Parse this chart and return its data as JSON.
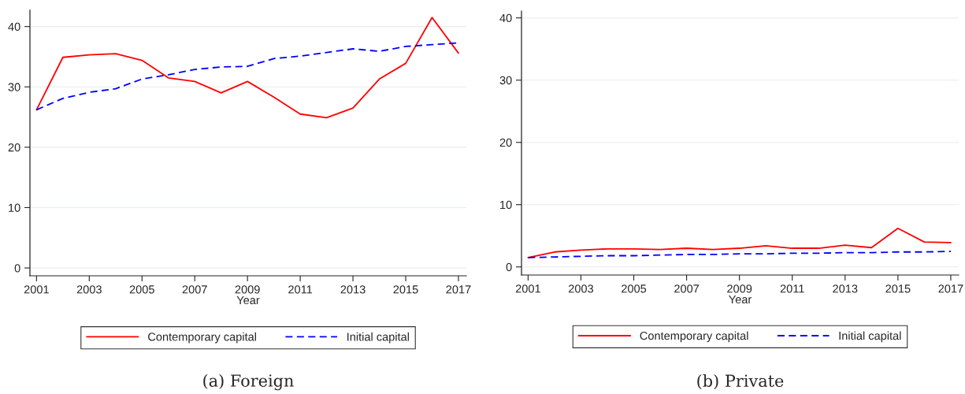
{
  "chart_data": [
    {
      "type": "line",
      "title": "(a) Foreign",
      "xlabel": "Year",
      "x": [
        2001,
        2002,
        2003,
        2004,
        2005,
        2006,
        2007,
        2008,
        2009,
        2010,
        2011,
        2012,
        2013,
        2014,
        2015,
        2016,
        2017
      ],
      "series": [
        {
          "name": "Contemporary capital",
          "color": "#ff0000",
          "line_style": "solid",
          "values": [
            26.2,
            34.9,
            35.3,
            35.5,
            34.4,
            31.5,
            30.9,
            29.0,
            30.9,
            28.3,
            25.5,
            24.9,
            26.5,
            31.3,
            33.9,
            41.5,
            35.6
          ]
        },
        {
          "name": "Initial capital",
          "color": "#0000ff",
          "line_style": "dashed",
          "values": [
            26.2,
            28.1,
            29.1,
            29.7,
            31.3,
            32.0,
            32.9,
            33.3,
            33.4,
            34.7,
            35.1,
            35.7,
            36.3,
            35.9,
            36.7,
            37.0,
            37.3
          ]
        }
      ],
      "xlim": [
        2000.75,
        2017.3
      ],
      "xticks": [
        2001,
        2003,
        2005,
        2007,
        2009,
        2011,
        2013,
        2015,
        2017
      ],
      "ylim": [
        -1.3,
        42.7
      ],
      "yticks": [
        0,
        10,
        20,
        30,
        40
      ],
      "grid": "y",
      "legend": "bottom",
      "marker": "none"
    },
    {
      "type": "line",
      "title": "(b) Private",
      "xlabel": "Year",
      "x": [
        2001,
        2002,
        2003,
        2004,
        2005,
        2006,
        2007,
        2008,
        2009,
        2010,
        2011,
        2012,
        2013,
        2014,
        2015,
        2016,
        2017
      ],
      "series": [
        {
          "name": "Contemporary capital",
          "color": "#ff0000",
          "line_style": "solid",
          "values": [
            1.5,
            2.4,
            2.7,
            2.9,
            2.9,
            2.8,
            3.0,
            2.8,
            3.0,
            3.4,
            3.0,
            3.0,
            3.5,
            3.1,
            6.2,
            4.0,
            3.9
          ]
        },
        {
          "name": "Initial capital",
          "color": "#0000ff",
          "line_style": "dashed",
          "values": [
            1.5,
            1.6,
            1.7,
            1.8,
            1.8,
            1.9,
            2.0,
            2.0,
            2.1,
            2.1,
            2.2,
            2.2,
            2.3,
            2.3,
            2.4,
            2.4,
            2.5
          ]
        }
      ],
      "xlim": [
        2000.75,
        2017.3
      ],
      "xticks": [
        2001,
        2003,
        2005,
        2007,
        2009,
        2011,
        2013,
        2015,
        2017
      ],
      "ylim": [
        -1.3,
        41.1
      ],
      "yticks": [
        0,
        10,
        20,
        30,
        40
      ],
      "grid": "y",
      "legend": "bottom",
      "marker": "none"
    }
  ]
}
